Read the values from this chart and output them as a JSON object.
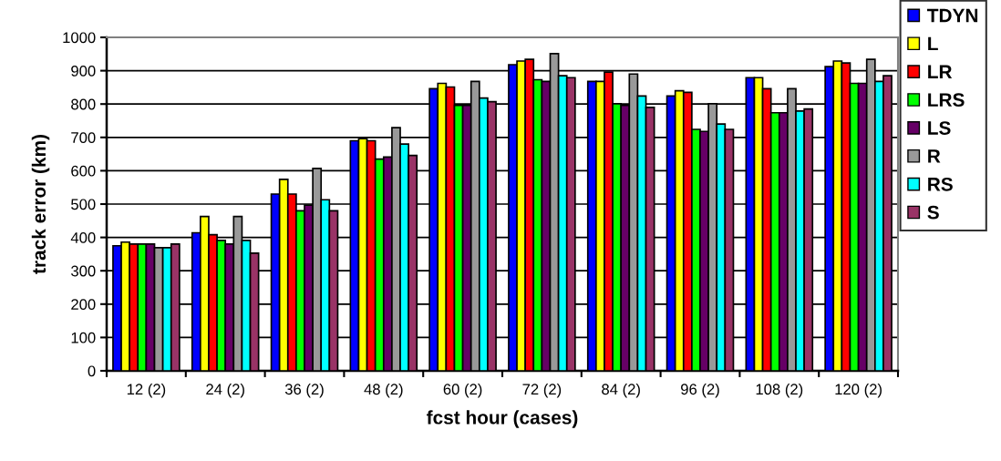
{
  "chart_data": {
    "type": "bar",
    "xlabel": "fcst hour (cases)",
    "ylabel": "track error (km)",
    "categories": [
      "12 (2)",
      "24 (2)",
      "36 (2)",
      "48 (2)",
      "60 (2)",
      "72 (2)",
      "84 (2)",
      "96 (2)",
      "108 (2)",
      "120 (2)"
    ],
    "series": [
      {
        "name": "TDYN",
        "color": "#0000ff",
        "values": [
          375,
          414,
          530,
          690,
          846,
          918,
          868,
          824,
          879,
          912
        ]
      },
      {
        "name": "L",
        "color": "#ffff00",
        "values": [
          386,
          463,
          574,
          696,
          862,
          929,
          868,
          840,
          879,
          929
        ]
      },
      {
        "name": "LR",
        "color": "#ff0000",
        "values": [
          380,
          408,
          530,
          690,
          851,
          934,
          896,
          835,
          846,
          923
        ]
      },
      {
        "name": "LRS",
        "color": "#00ff00",
        "values": [
          380,
          391,
          480,
          635,
          796,
          873,
          801,
          724,
          774,
          862
        ]
      },
      {
        "name": "LS",
        "color": "#660066",
        "values": [
          380,
          380,
          497,
          641,
          796,
          868,
          796,
          718,
          774,
          862
        ]
      },
      {
        "name": "R",
        "color": "#999999",
        "values": [
          369,
          463,
          607,
          729,
          868,
          951,
          890,
          801,
          846,
          934
        ]
      },
      {
        "name": "RS",
        "color": "#00ffff",
        "values": [
          369,
          391,
          513,
          680,
          818,
          885,
          824,
          740,
          779,
          868
        ]
      },
      {
        "name": "S",
        "color": "#993366",
        "values": [
          380,
          353,
          480,
          646,
          807,
          879,
          790,
          724,
          785,
          885
        ]
      }
    ],
    "ylim": [
      0,
      1000
    ],
    "yticks": [
      0,
      100,
      200,
      300,
      400,
      500,
      600,
      700,
      800,
      900,
      1000
    ],
    "grid": "y",
    "legend": "right"
  }
}
